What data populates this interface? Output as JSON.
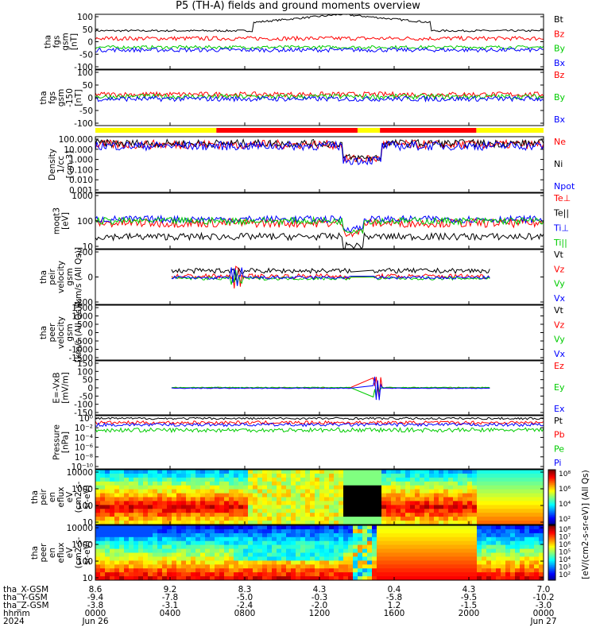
{
  "title": "P5 (TH-A) fields and ground moments overview",
  "chart_data": [
    {
      "type": "line",
      "panel": "fgs_gsm",
      "ylabel": [
        "tha",
        "fgs",
        "gsm",
        "[nT]"
      ],
      "yticks": [
        "100",
        "50",
        "0",
        "-50",
        "-100"
      ],
      "ylim": [
        -100,
        100
      ],
      "series": [
        {
          "name": "Bt",
          "color": "#000000"
        },
        {
          "name": "Bz",
          "color": "#ff0000"
        },
        {
          "name": "By",
          "color": "#00cc00"
        },
        {
          "name": "Bx",
          "color": "#0000ff"
        }
      ]
    },
    {
      "type": "line",
      "panel": "fgs_gsm_nobt",
      "ylabel": [
        "tha",
        "fgs",
        "gsm",
        "-150",
        "[nT]"
      ],
      "yticks": [
        "100",
        "50",
        "0",
        "-50",
        "-100"
      ],
      "ylim": [
        -125,
        125
      ],
      "series": [
        {
          "name": "Bz",
          "color": "#ff0000"
        },
        {
          "name": "By",
          "color": "#00cc00"
        },
        {
          "name": "Bx",
          "color": "#0000ff"
        }
      ]
    },
    {
      "type": "line",
      "panel": "density",
      "ylabel": [
        "Density",
        "1/cc",
        "[cm-3]"
      ],
      "yticks": [
        "100.000",
        "10.000",
        "1.000",
        "0.100",
        "0.010",
        "0.001"
      ],
      "ylim": [
        0.001,
        100
      ],
      "log": true,
      "series": [
        {
          "name": "Ne",
          "color": "#ff0000"
        },
        {
          "name": "Ni",
          "color": "#000000"
        },
        {
          "name": "Npot",
          "color": "#0000ff"
        }
      ]
    },
    {
      "type": "line",
      "panel": "temperature",
      "ylabel": [
        "moqt3",
        "[eV]"
      ],
      "yticks": [
        "1000",
        "100",
        "10"
      ],
      "ylim": [
        5,
        8000
      ],
      "log": true,
      "series": [
        {
          "name": "Te⊥",
          "color": "#ff0000"
        },
        {
          "name": "Te||",
          "color": "#000000"
        },
        {
          "name": "Ti⊥",
          "color": "#0000ff"
        },
        {
          "name": "Ti||",
          "color": "#00cc00"
        }
      ]
    },
    {
      "type": "line",
      "panel": "peir_velocity",
      "ylabel": [
        "tha",
        "peir",
        "velocity",
        "gsm",
        "[km/s (All Qs)]"
      ],
      "yticks": [
        "200",
        "0",
        "-200"
      ],
      "ylim": [
        -400,
        400
      ],
      "series": [
        {
          "name": "Vt",
          "color": "#000000"
        },
        {
          "name": "Vz",
          "color": "#ff0000"
        },
        {
          "name": "Vy",
          "color": "#00cc00"
        },
        {
          "name": "Vx",
          "color": "#0000ff"
        }
      ]
    },
    {
      "type": "line",
      "panel": "peer_velocity",
      "ylabel": [
        "tha",
        "peer",
        "velocity",
        "gsm",
        "[km/s (All Qs)]"
      ],
      "yticks": [
        "1500",
        "1000",
        "500",
        "0",
        "-500",
        "-1000",
        "-1500"
      ],
      "ylim": [
        -1500,
        1500
      ],
      "series": [
        {
          "name": "Vt",
          "color": "#000000"
        },
        {
          "name": "Vz",
          "color": "#ff0000"
        },
        {
          "name": "Vy",
          "color": "#00cc00"
        },
        {
          "name": "Vx",
          "color": "#0000ff"
        }
      ]
    },
    {
      "type": "line",
      "panel": "efield",
      "ylabel": [
        "E=-VxB",
        "[mV/m]"
      ],
      "yticks": [
        "150",
        "100",
        "50",
        "0",
        "-50",
        "-100",
        "-150"
      ],
      "ylim": [
        -150,
        150
      ],
      "series": [
        {
          "name": "Ez",
          "color": "#ff0000"
        },
        {
          "name": "Ey",
          "color": "#00cc00"
        },
        {
          "name": "Ex",
          "color": "#0000ff"
        }
      ]
    },
    {
      "type": "line",
      "panel": "pressure",
      "ylabel": [
        "Pressure",
        "[nPa]"
      ],
      "yticks": [
        "10⁰",
        "10⁻²",
        "10⁻⁴",
        "10⁻⁶",
        "10⁻⁸",
        "10⁻¹⁰"
      ],
      "ylim": [
        1e-10,
        1
      ],
      "log": true,
      "series": [
        {
          "name": "Pt",
          "color": "#000000"
        },
        {
          "name": "Pb",
          "color": "#ff0000"
        },
        {
          "name": "Pe",
          "color": "#00cc00"
        },
        {
          "name": "Pi",
          "color": "#0000ff"
        }
      ]
    },
    {
      "type": "heatmap",
      "panel": "peir_eflux",
      "ylabel": [
        "tha",
        "peir",
        "en",
        "eflux",
        "eV",
        "(cm2-s-",
        "sr-eV)"
      ],
      "yticks": [
        "10000",
        "1000",
        "100",
        "10"
      ],
      "ylim": [
        5,
        30000
      ],
      "log": true
    },
    {
      "type": "heatmap",
      "panel": "peer_eflux",
      "ylabel": [
        "tha",
        "peer",
        "en",
        "eflux",
        "eV",
        "(cm2-s-",
        "sr-eV)"
      ],
      "yticks": [
        "10000",
        "1000",
        "100",
        "10"
      ],
      "ylim": [
        5,
        30000
      ],
      "log": true
    }
  ],
  "colorbar": {
    "label": "[eV/(cm2-s-sr-eV)] (All Qs)",
    "ticks_top": [
      "10⁸",
      "10⁶",
      "10⁴",
      "10²"
    ],
    "ticks_bottom": [
      "10⁸",
      "10⁷",
      "10⁶",
      "10⁵",
      "10⁴",
      "10³",
      "10²"
    ]
  },
  "xaxis": {
    "row_labels": [
      "tha_X-GSM",
      "tha_Y-GSM",
      "tha_Z-GSM",
      "hhmm",
      "2024"
    ],
    "columns": [
      {
        "x": "8.6",
        "y": "-9.4",
        "z": "-3.8",
        "hhmm": "0000",
        "date": "Jun 26"
      },
      {
        "x": "9.2",
        "y": "-7.8",
        "z": "-3.1",
        "hhmm": "0400",
        "date": ""
      },
      {
        "x": "8.3",
        "y": "-5.0",
        "z": "-2.4",
        "hhmm": "0800",
        "date": ""
      },
      {
        "x": "4.3",
        "y": "-0.3",
        "z": "-2.0",
        "hhmm": "1200",
        "date": ""
      },
      {
        "x": "0.4",
        "y": "-5.8",
        "z": "1.2",
        "hhmm": "1600",
        "date": ""
      },
      {
        "x": "4.3",
        "y": "-9.5",
        "z": "-1.5",
        "hhmm": "2000",
        "date": ""
      },
      {
        "x": "7.0",
        "y": "-10.2",
        "z": "-3.0",
        "hhmm": "0000",
        "date": "Jun 27"
      }
    ]
  },
  "mode_bar": [
    {
      "from": 0,
      "to": 0.27,
      "color": "#ffff00"
    },
    {
      "from": 0.27,
      "to": 0.585,
      "color": "#ff0000"
    },
    {
      "from": 0.585,
      "to": 0.635,
      "color": "#ffff00"
    },
    {
      "from": 0.635,
      "to": 0.85,
      "color": "#ff0000"
    },
    {
      "from": 0.85,
      "to": 1,
      "color": "#ffff00"
    }
  ]
}
